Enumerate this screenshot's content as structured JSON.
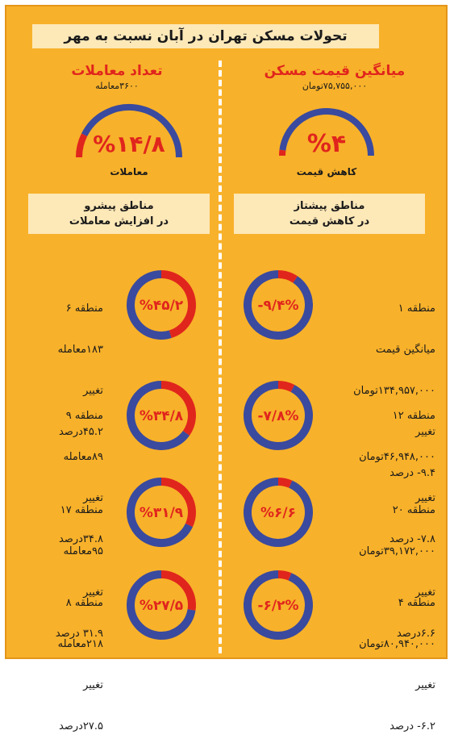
{
  "title": "تحولات مسکن تهران در آبان نسبت به مهر",
  "right_header": {
    "title": "میانگین قیمت مسکن",
    "subtitle": "۷۵,۷۵۵,۰۰۰تومان",
    "gauge_label": "%۴",
    "caption": "کاهش قیمت",
    "box_line1": "مناطق پیشتاز",
    "box_line2": "در کاهش قیمت"
  },
  "left_header": {
    "title": "تعداد معاملات",
    "subtitle": "۳۶۰۰معامله",
    "gauge_label": "%۱۴/۸",
    "caption": "معاملات",
    "box_line1": "مناطق پیشرو",
    "box_line2": "در افزایش معاملات"
  },
  "colors": {
    "red": "#e0251d",
    "blue": "#3a4a9e",
    "background": "#f8b12a",
    "box": "#fde8b8"
  },
  "chart_data": [
    {
      "type": "pie",
      "name": "gauge-price",
      "value": 4
    },
    {
      "type": "pie",
      "name": "gauge-transactions",
      "value": 14.8
    },
    {
      "type": "pie",
      "side": "right",
      "label": "-۹/۴%",
      "value": 9.4
    },
    {
      "type": "pie",
      "side": "right",
      "label": "-۷/۸%",
      "value": 7.8
    },
    {
      "type": "pie",
      "side": "right",
      "label": "%۶/۶",
      "value": 6.6
    },
    {
      "type": "pie",
      "side": "right",
      "label": "-۶/۲%",
      "value": 6.2
    },
    {
      "type": "pie",
      "side": "left",
      "label": "%۴۵/۲",
      "value": 45.2
    },
    {
      "type": "pie",
      "side": "left",
      "label": "%۳۴/۸",
      "value": 34.8
    },
    {
      "type": "pie",
      "side": "left",
      "label": "%۳۱/۹",
      "value": 31.9
    },
    {
      "type": "pie",
      "side": "left",
      "label": "%۲۷/۵",
      "value": 27.5
    }
  ],
  "right_items": [
    {
      "lines": [
        "منطقه ۱",
        "میانگین قیمت",
        "۱۳۴,۹۵۷,۰۰۰تومان",
        "تغییر",
        "۹.۴- درصد"
      ]
    },
    {
      "lines": [
        "منطقه ۱۲",
        "۴۶,۹۴۸,۰۰۰تومان",
        "تغییر",
        "۷.۸- درصد"
      ]
    },
    {
      "lines": [
        "منطقه ۲۰",
        "۳۹,۱۷۲,۰۰۰تومان",
        "تغییر",
        "۶.۶درصد"
      ]
    },
    {
      "lines": [
        "منطقه ۴",
        "۸۰,۹۴۰,۰۰۰تومان",
        "تغییر",
        "۶.۲- درصد"
      ]
    }
  ],
  "left_items": [
    {
      "lines": [
        "منطقه ۶",
        "۱۸۳معامله",
        "تغییر",
        "۴۵.۲درصد"
      ]
    },
    {
      "lines": [
        "منطقه ۹",
        "۸۹معامله",
        "تغییر",
        "۳۴.۸درصد"
      ]
    },
    {
      "lines": [
        "منطقه ۱۷",
        "۹۵معامله",
        "تغییر",
        "۳۱.۹ درصد"
      ]
    },
    {
      "lines": [
        "منطقه ۸",
        "۲۱۸معامله",
        "تغییر",
        "۲۷.۵درصد"
      ]
    }
  ]
}
